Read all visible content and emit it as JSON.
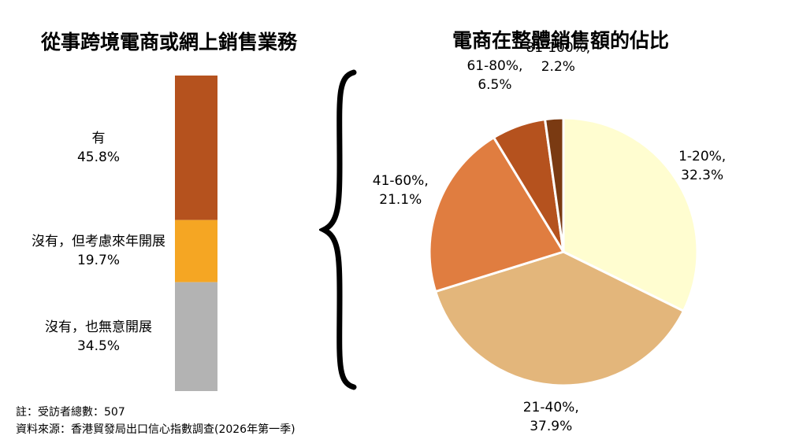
{
  "chart_data": [
    {
      "type": "bar",
      "title": "從事跨境電商或網上銷售業務",
      "stacked": true,
      "series": [
        {
          "name": "有",
          "value": 45.8,
          "value_label": "45.8%",
          "color": "#B5521E"
        },
        {
          "name": "沒有，但考慮來年開展",
          "value": 19.7,
          "value_label": "19.7%",
          "color": "#F5A623"
        },
        {
          "name": "沒有，也無意開展",
          "value": 34.5,
          "value_label": "34.5%",
          "color": "#B3B3B3"
        }
      ]
    },
    {
      "type": "pie",
      "title": "電商在整體銷售額的佔比",
      "slices": [
        {
          "label": "1-20%,",
          "value": 32.3,
          "value_label": "32.3%",
          "color": "#FFFDD0"
        },
        {
          "label": "21-40%,",
          "value": 37.9,
          "value_label": "37.9%",
          "color": "#E3B67B"
        },
        {
          "label": "41-60%,",
          "value": 21.1,
          "value_label": "21.1%",
          "color": "#E07D40"
        },
        {
          "label": "61-80%,",
          "value": 6.5,
          "value_label": "6.5%",
          "color": "#B5521E"
        },
        {
          "label": "81-100%,",
          "value": 2.2,
          "value_label": "2.2%",
          "color": "#7A3A12"
        }
      ]
    }
  ],
  "footnotes": {
    "note": "註：受訪者總數：507",
    "source": "資料來源：香港貿發局出口信心指數調查(2026年第一季)"
  }
}
